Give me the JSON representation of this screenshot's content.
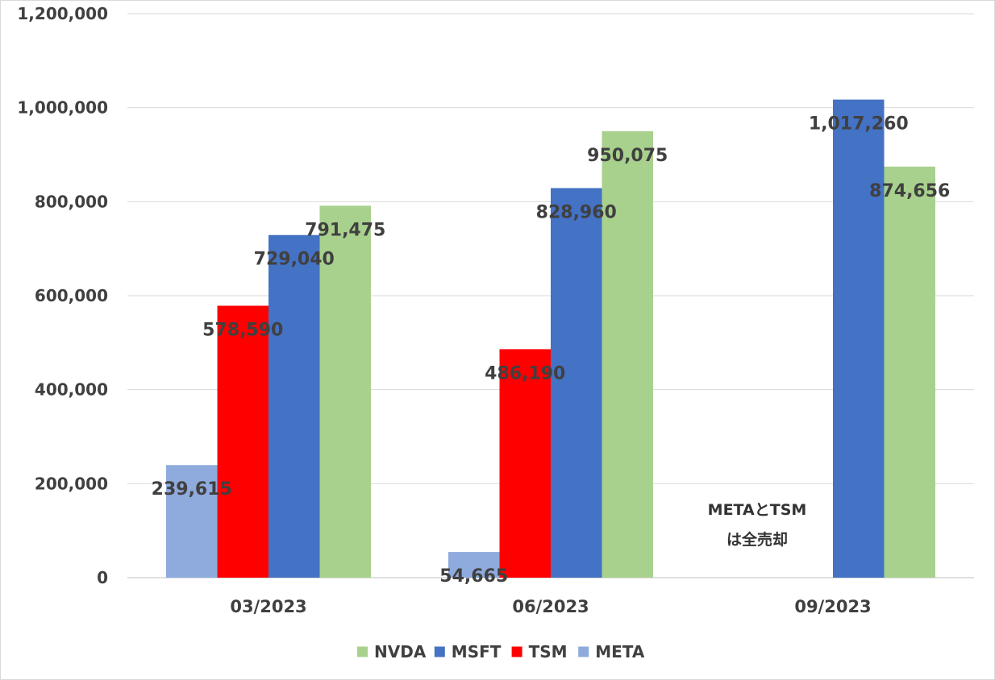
{
  "chart_data": {
    "type": "bar",
    "title": "",
    "xlabel": "",
    "ylabel": "",
    "ylim": [
      0,
      1200000
    ],
    "yticks": [
      0,
      200000,
      400000,
      600000,
      800000,
      1000000,
      1200000
    ],
    "ytick_labels": [
      "0",
      "200,000",
      "400,000",
      "600,000",
      "800,000",
      "1,000,000",
      "1,200,000"
    ],
    "grid": true,
    "legend_position": "bottom",
    "categories": [
      "03/2023",
      "06/2023",
      "09/2023"
    ],
    "series": [
      {
        "name": "META",
        "color": "#8faadc",
        "values": [
          239615,
          54665,
          null
        ],
        "labels": [
          "239,615",
          "54,665",
          ""
        ]
      },
      {
        "name": "TSM",
        "color": "#ff0000",
        "values": [
          578590,
          486190,
          null
        ],
        "labels": [
          "578,590",
          "486,190",
          ""
        ]
      },
      {
        "name": "MSFT",
        "color": "#4472c4",
        "values": [
          729040,
          828960,
          1017260
        ],
        "labels": [
          "729,040",
          "828,960",
          "1,017,260"
        ]
      },
      {
        "name": "NVDA",
        "color": "#a9d18e",
        "values": [
          791475,
          950075,
          874656
        ],
        "labels": [
          "791,475",
          "950,075",
          "874,656"
        ]
      }
    ],
    "legend_order": [
      "NVDA",
      "MSFT",
      "TSM",
      "META"
    ],
    "annotation": {
      "category": "09/2023",
      "lines": [
        "METAとTSM",
        "は全売却"
      ]
    }
  }
}
